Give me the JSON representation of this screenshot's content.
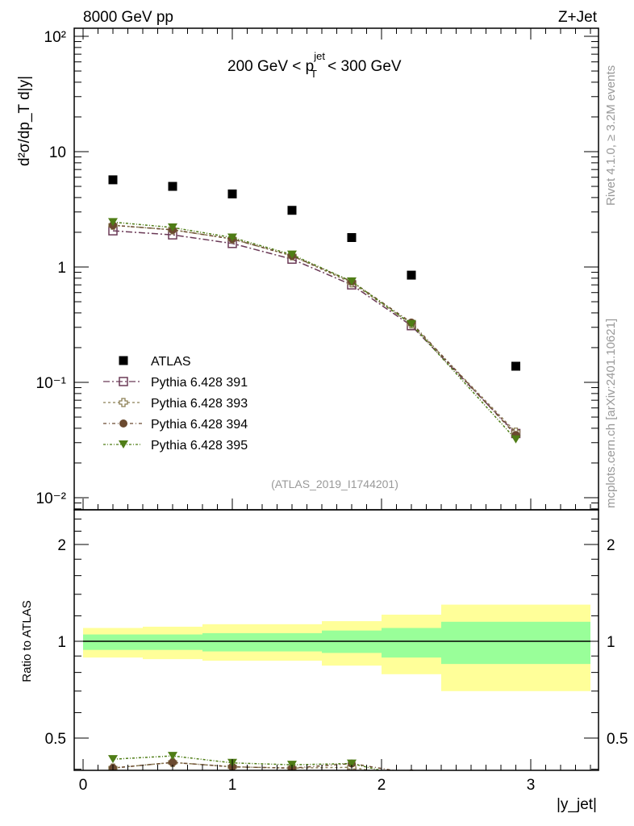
{
  "header": {
    "left": "8000 GeV pp",
    "right": "Z+Jet"
  },
  "side": {
    "top": "Rivet 4.1.0, ≥ 3.2M events",
    "bottom": "mcplots.cern.ch [arXiv:2401.10621]"
  },
  "plot_title": {
    "pre": "200 GeV < p",
    "sup": "jet",
    "sub": "T",
    "post": " < 300 GeV"
  },
  "analysis_tag": "(ATLAS_2019_I1744201)",
  "chart_data": {
    "type": "scatter",
    "title": "200 GeV < p_T^jet < 300 GeV",
    "xlabel": "|y_jet|",
    "ylabel": "d²σ/dp_T d|y|",
    "ratio_ylabel": "Ratio to ATLAS",
    "xlim": [
      -0.08,
      3.45
    ],
    "ylim": [
      0.008,
      120
    ],
    "ratio_ylim": [
      0.4,
      2.55
    ],
    "x": [
      0.2,
      0.6,
      1.0,
      1.4,
      1.8,
      2.2,
      2.9
    ],
    "bin_edges": [
      0,
      0.4,
      0.8,
      1.2,
      1.6,
      2.0,
      2.4,
      3.4
    ],
    "x_ticks": [
      "0",
      "1",
      "2",
      "3"
    ],
    "y_ticks": [
      "10⁻²",
      "10⁻¹",
      "1",
      "10",
      "10²"
    ],
    "ratio_ticks": [
      "0.5",
      "1",
      "2"
    ],
    "series": [
      {
        "name": "ATLAS",
        "color": "#000000",
        "marker": "square",
        "values": [
          5.7,
          5.0,
          4.3,
          3.1,
          1.8,
          0.85,
          0.138
        ]
      },
      {
        "name": "Pythia 6.428 391",
        "color": "#6b3a57",
        "marker": "open-square",
        "dash": "8,3,2,3",
        "values": [
          2.06,
          1.9,
          1.6,
          1.17,
          0.7,
          0.31,
          0.036
        ]
      },
      {
        "name": "Pythia 6.428 393",
        "color": "#8c7f55",
        "marker": "open-cross",
        "dash": "3,3",
        "values": [
          2.3,
          2.1,
          1.75,
          1.25,
          0.73,
          0.32,
          0.037
        ]
      },
      {
        "name": "Pythia 6.428 394",
        "color": "#6b4a30",
        "marker": "circle",
        "dash": "4,3,1,3",
        "values": [
          2.3,
          2.1,
          1.75,
          1.25,
          0.75,
          0.33,
          0.035
        ]
      },
      {
        "name": "Pythia 6.428 395",
        "color": "#4f7d16",
        "marker": "triangle-down",
        "dash": "3,2,1,2",
        "values": [
          2.45,
          2.2,
          1.8,
          1.28,
          0.75,
          0.32,
          0.032
        ]
      }
    ],
    "uncertainty_band": {
      "inner_color": "#99ff99",
      "outer_color": "#ffff99",
      "inner_lo": [
        0.94,
        0.94,
        0.93,
        0.93,
        0.92,
        0.89,
        0.85
      ],
      "inner_hi": [
        1.05,
        1.05,
        1.06,
        1.06,
        1.08,
        1.1,
        1.15
      ],
      "outer_lo": [
        0.89,
        0.88,
        0.87,
        0.87,
        0.84,
        0.79,
        0.7
      ],
      "outer_hi": [
        1.1,
        1.11,
        1.13,
        1.13,
        1.155,
        1.21,
        1.3
      ]
    },
    "legend_placement": "lower-left"
  }
}
